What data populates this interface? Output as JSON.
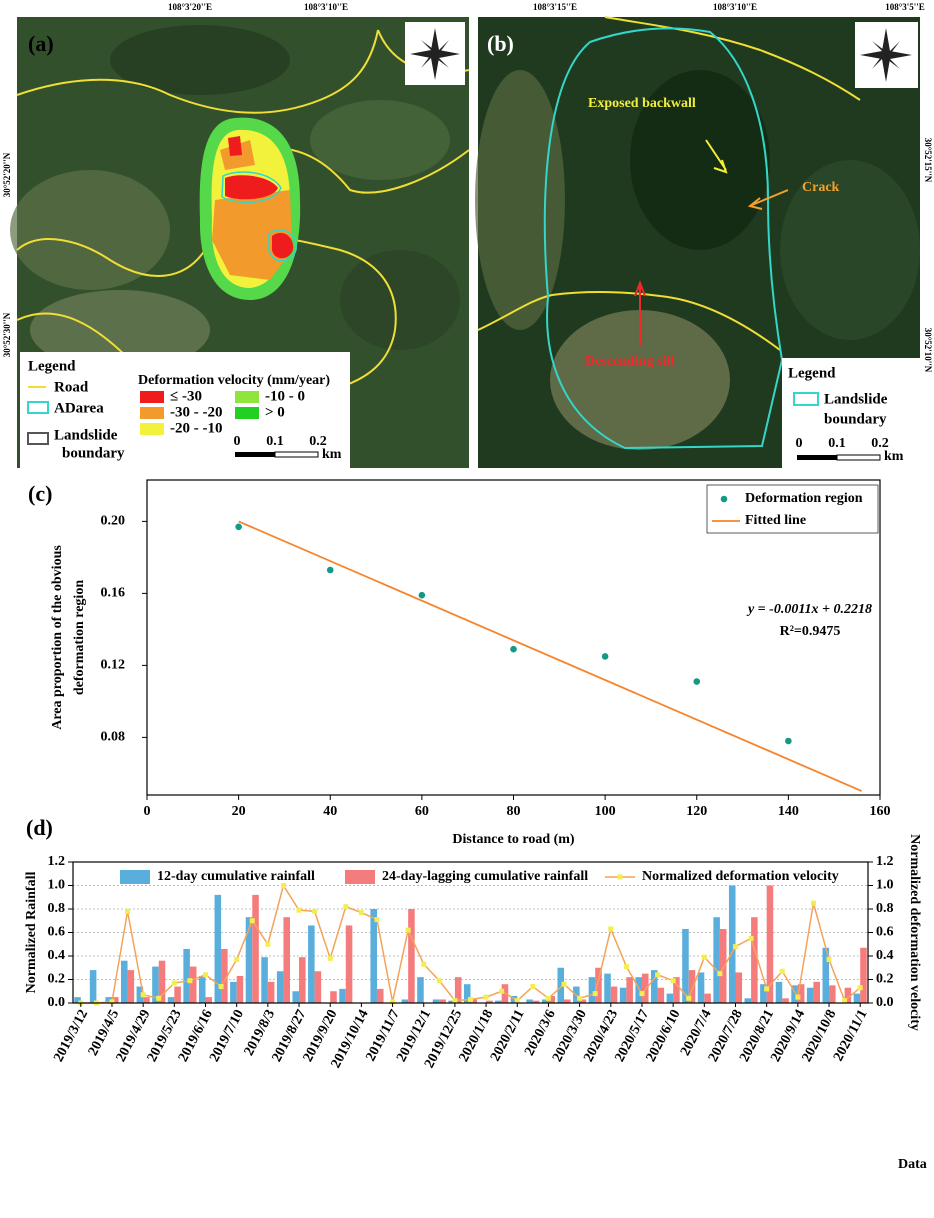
{
  "maps": [
    {
      "panel": "(a)",
      "lon_labels": [
        "108°3'20''E",
        "108°3'10''E"
      ],
      "lat_labels": [
        "30°52'20''N",
        "30°52'30''N"
      ],
      "legend_title": "Legend",
      "legend_items": [
        "Road",
        "ADarea",
        "Landslide",
        "boundary"
      ],
      "velocity_title": "Deformation velocity (mm/year)",
      "velocity_classes": [
        "≤ -30",
        "-30 - -20",
        "-20 - -10",
        "-10 - 0",
        "> 0"
      ],
      "velocity_colors": [
        "#ee1c1c",
        "#f39a2c",
        "#f2f23c",
        "#8ee63c",
        "#22d022"
      ],
      "scale_labels": [
        "0",
        "0.1",
        "0.2"
      ],
      "scale_unit": "km"
    },
    {
      "panel": "(b)",
      "lon_labels": [
        "108°3'15''E",
        "108°3'10''E",
        "108°3'5''E"
      ],
      "lat_labels": [
        "30°52'15''N",
        "30°52'10''N"
      ],
      "annotations": [
        "Exposed backwall",
        "Crack",
        "Descending sill"
      ],
      "legend_title": "Legend",
      "legend_items": [
        "Landslide",
        "boundary"
      ],
      "scale_labels": [
        "0",
        "0.1",
        "0.2"
      ],
      "scale_unit": "km"
    }
  ],
  "chart_data": [
    {
      "type": "scatter",
      "panel": "(c)",
      "x_label": "Distance to road (m)",
      "y_label": [
        "Area proportion of the obvious",
        "deformation region"
      ],
      "annotations": [
        "y = -0.0011x + 0.2218",
        "R²=0.9475"
      ],
      "xlim": [
        0,
        160
      ],
      "ylim": [
        0.048,
        0.223
      ],
      "xticks": [
        0,
        20,
        40,
        60,
        80,
        100,
        120,
        140,
        160
      ],
      "yticks": [
        0.08,
        0.12,
        0.16,
        {
          "value": 0.2,
          "label": "0.20"
        }
      ],
      "legend": "upper right",
      "series": [
        {
          "name": "Deformation region",
          "color": "#139a86",
          "kind": "scatter",
          "x": [
            20,
            40,
            60,
            80,
            100,
            120,
            140
          ],
          "values": [
            0.197,
            0.173,
            0.159,
            0.129,
            0.125,
            0.111,
            0.078
          ]
        },
        {
          "name": "Fitted line",
          "color": "#f5842c",
          "kind": "line",
          "x": [
            20,
            156
          ],
          "values": [
            0.2,
            0.0502
          ]
        }
      ]
    },
    {
      "type": "bar",
      "panel": "(d)",
      "x_label": "Data",
      "y_label": "Normalized  Rainfall",
      "y2_label": "Normalized deformation velocity",
      "categories": [
        "2019/3/12",
        null,
        "2019/4/5",
        null,
        "2019/4/29",
        null,
        "2019/5/23",
        null,
        "2019/6/16",
        null,
        "2019/7/10",
        null,
        "2019/8/3",
        null,
        "2019/8/27",
        null,
        "2019/9/20",
        null,
        "2019/10/14",
        null,
        "2019/11/7",
        null,
        "2019/12/1",
        null,
        "2019/12/25",
        null,
        "2020/1/18",
        null,
        "2020/2/11",
        null,
        "2020/3/6",
        null,
        "2020/3/30",
        null,
        "2020/4/23",
        null,
        "2020/5/17",
        null,
        "2020/6/10",
        null,
        "2020/7/4",
        null,
        "2020/7/28",
        null,
        "2020/8/21",
        null,
        "2020/9/14",
        null,
        "2020/10/8",
        null,
        "2020/11/1"
      ],
      "ylim": [
        0,
        1.2
      ],
      "yticks": [
        {
          "value": 0,
          "label": "0.0"
        },
        0.2,
        0.4,
        0.6,
        0.8,
        {
          "value": 1,
          "label": "1.0"
        },
        1.2
      ],
      "y2lim": [
        0,
        1.2
      ],
      "y2ticks": [
        {
          "value": 0,
          "label": "0.0"
        },
        0.2,
        0.4,
        0.6,
        0.8,
        {
          "value": 1,
          "label": "1.0"
        },
        1.2
      ],
      "grid": true,
      "legend": "top",
      "series": [
        {
          "name": "12-day cumulative rainfall",
          "color": "#5aaedc",
          "kind": "bar",
          "values": [
            0.05,
            0.28,
            0.05,
            0.36,
            0.14,
            0.31,
            0.05,
            0.46,
            0.23,
            0.92,
            0.18,
            0.73,
            0.39,
            0.27,
            0.1,
            0.66,
            0,
            0.12,
            0,
            0.8,
            0,
            0.03,
            0.22,
            0.03,
            0.02,
            0.16,
            0,
            0.02,
            0.06,
            0.03,
            0.03,
            0.3,
            0.14,
            0.22,
            0.25,
            0.13,
            0.22,
            0.28,
            0.08,
            0.63,
            0.26,
            0.73,
            1.0,
            0.04,
            0.16,
            0.18,
            0.15,
            0.13,
            0.47,
            0,
            0.08
          ]
        },
        {
          "name": "24-day-lagging cumulative rainfall",
          "color": "#f47c7c",
          "kind": "bar",
          "values": [
            0,
            0,
            0.05,
            0.28,
            0.05,
            0.36,
            0.14,
            0.31,
            0.05,
            0.46,
            0.23,
            0.92,
            0.18,
            0.73,
            0.39,
            0.27,
            0.1,
            0.66,
            0,
            0.12,
            0,
            0.8,
            0,
            0.03,
            0.22,
            0.03,
            0.02,
            0.16,
            0,
            0.02,
            0.06,
            0.03,
            0.03,
            0.3,
            0.14,
            0.22,
            0.25,
            0.13,
            0.22,
            0.28,
            0.08,
            0.63,
            0.26,
            0.73,
            1.0,
            0.04,
            0.16,
            0.18,
            0.15,
            0.13,
            0.47
          ]
        },
        {
          "name": "Normalized deformation velocity",
          "color": "#f5a35a",
          "marker_color": "#f3ee4f",
          "kind": "line",
          "axis": "y2",
          "values": [
            0,
            0,
            0.01,
            0.78,
            0.07,
            0.04,
            0.17,
            0.19,
            0.24,
            0.14,
            0.37,
            0.7,
            0.5,
            1.0,
            0.79,
            0.78,
            0.38,
            0.82,
            0.77,
            0.71,
            0.01,
            0.62,
            0.33,
            0.19,
            0.02,
            0.03,
            0.05,
            0.1,
            0.02,
            0.14,
            0.04,
            0.16,
            0.04,
            0.08,
            0.63,
            0.31,
            0.08,
            0.24,
            0.19,
            0.04,
            0.39,
            0.25,
            0.48,
            0.55,
            0.12,
            0.27,
            0.05,
            0.85,
            0.37,
            0.02,
            0.13
          ]
        }
      ]
    }
  ]
}
